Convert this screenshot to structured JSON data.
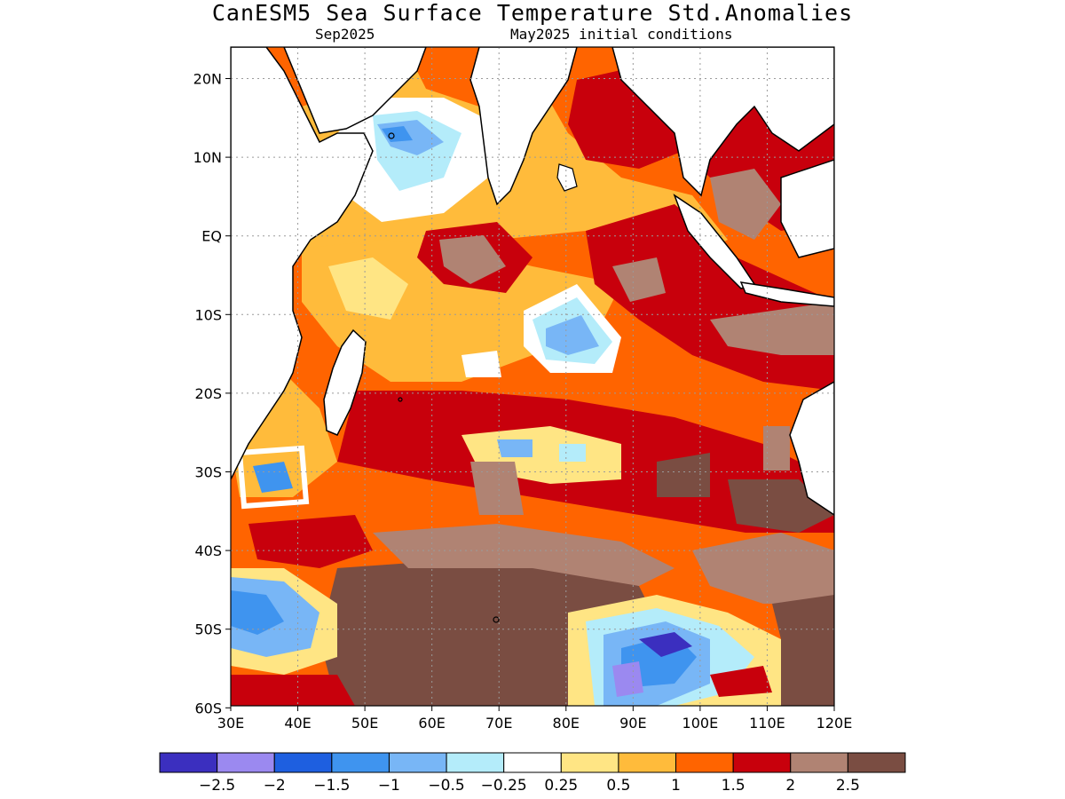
{
  "title": "CanESM5 Sea Surface Temperature Std.Anomalies",
  "subtitle_left": "Sep2025",
  "subtitle_right": "May2025 initial conditions",
  "lon_labels": [
    "30E",
    "40E",
    "50E",
    "60E",
    "70E",
    "80E",
    "90E",
    "100E",
    "110E",
    "120E"
  ],
  "lat_labels": [
    "20N",
    "10N",
    "EQ",
    "10S",
    "20S",
    "30S",
    "40S",
    "50S",
    "60S"
  ],
  "colorbar": {
    "colors": [
      "#3b2fbf",
      "#9b89f0",
      "#1e5fe0",
      "#3f94ef",
      "#78b6f6",
      "#b4ecfa",
      "#ffffff",
      "#ffe584",
      "#ffbb3b",
      "#ff6400",
      "#c8000c",
      "#b08373",
      "#7a4d42"
    ],
    "labels": [
      "−2.5",
      "−2",
      "−1.5",
      "−1",
      "−0.5",
      "−0.25",
      "0.25",
      "0.5",
      "1",
      "1.5",
      "2",
      "2.5"
    ]
  },
  "colors": {
    "land": "#ffffff",
    "coast": "#000000",
    "grid": "#9a9a9a"
  }
}
